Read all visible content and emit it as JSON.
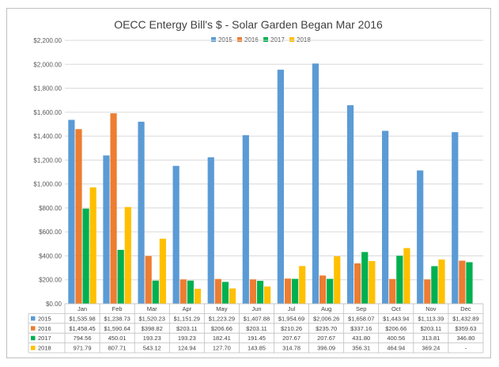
{
  "chart_data": {
    "type": "bar",
    "title": "OECC Entergy Bill's $ - Solar Garden Began Mar 2016",
    "categories": [
      "Jan",
      "Feb",
      "Mar",
      "Apr",
      "May",
      "Jun",
      "Jul",
      "Aug",
      "Sep",
      "Oct",
      "Nov",
      "Dec"
    ],
    "ylim": [
      0,
      2200
    ],
    "yticks": [
      "$0.00",
      "$200.00",
      "$400.00",
      "$600.00",
      "$800.00",
      "$1,000.00",
      "$1,200.00",
      "$1,400.00",
      "$1,600.00",
      "$1,800.00",
      "$2,000.00",
      "$2,200.00"
    ],
    "grid": true,
    "legend_position": "top",
    "series": [
      {
        "name": "2015",
        "color": "#5b9bd5",
        "values": [
          1535.98,
          1238.73,
          1520.23,
          1151.29,
          1223.29,
          1407.88,
          1954.69,
          2006.26,
          1658.07,
          1443.94,
          1113.39,
          1432.89
        ],
        "labels": [
          "$1,535.98",
          "$1,238.73",
          "$1,520.23",
          "$1,151.29",
          "$1,223.29",
          "$1,407.88",
          "$1,954.69",
          "$2,006.26",
          "$1,658.07",
          "$1,443.94",
          "$1,113.39",
          "$1,432.89"
        ]
      },
      {
        "name": "2016",
        "color": "#ed7d31",
        "values": [
          1458.45,
          1590.64,
          398.82,
          203.11,
          206.66,
          203.11,
          210.26,
          235.7,
          337.16,
          206.66,
          203.11,
          359.63
        ],
        "labels": [
          "$1,458.45",
          "$1,590.64",
          "$398.82",
          "$203.11",
          "$206.66",
          "$203.11",
          "$210.26",
          "$235.70",
          "$337.16",
          "$206.66",
          "$203.11",
          "$359.63"
        ]
      },
      {
        "name": "2017",
        "color": "#00b050",
        "values": [
          794.56,
          450.01,
          193.23,
          193.23,
          182.41,
          191.45,
          207.67,
          207.67,
          431.8,
          400.56,
          313.81,
          346.8
        ],
        "labels": [
          "794.56",
          "450.01",
          "193.23",
          "193.23",
          "182.41",
          "191.45",
          "207.67",
          "207.67",
          "431.80",
          "400.56",
          "313.81",
          "346.80"
        ]
      },
      {
        "name": "2018",
        "color": "#ffc000",
        "values": [
          971.79,
          807.71,
          543.12,
          124.94,
          127.7,
          143.85,
          314.78,
          396.09,
          356.31,
          464.94,
          369.24,
          null
        ],
        "labels": [
          "971.79",
          "807.71",
          "543.12",
          "124.94",
          "127.70",
          "143.85",
          "314.78",
          "396.09",
          "356.31",
          "464.94",
          "369.24",
          "-"
        ]
      }
    ]
  }
}
